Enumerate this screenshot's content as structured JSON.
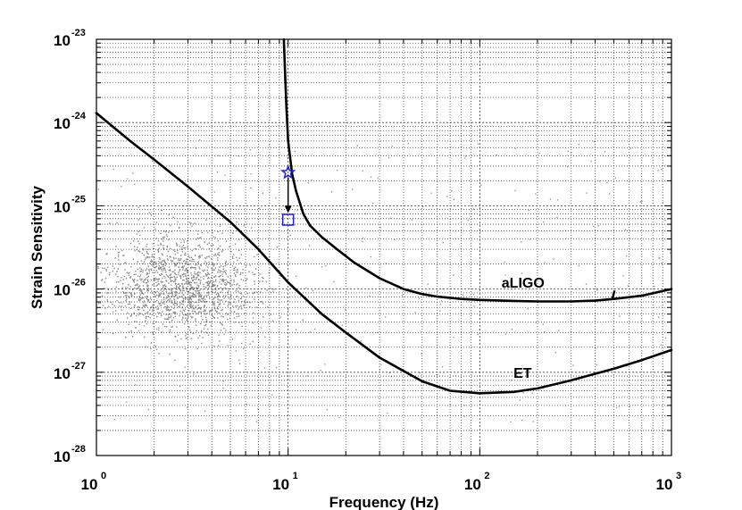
{
  "chart_data": {
    "type": "line",
    "title": "",
    "xlabel": "Frequency (Hz)",
    "ylabel": "Strain Sensitivity",
    "xscale": "log",
    "yscale": "log",
    "xlim": [
      1,
      1000
    ],
    "ylim": [
      1e-28,
      1e-23
    ],
    "grid": true,
    "x_ticks": [
      {
        "base": "10",
        "exp": "0"
      },
      {
        "base": "10",
        "exp": "1"
      },
      {
        "base": "10",
        "exp": "2"
      },
      {
        "base": "10",
        "exp": "3"
      }
    ],
    "y_ticks": [
      {
        "base": "10",
        "exp": "-23"
      },
      {
        "base": "10",
        "exp": "-24"
      },
      {
        "base": "10",
        "exp": "-25"
      },
      {
        "base": "10",
        "exp": "-26"
      },
      {
        "base": "10",
        "exp": "-27"
      },
      {
        "base": "10",
        "exp": "-28"
      }
    ],
    "series": [
      {
        "name": "aLIGO",
        "color": "#000000",
        "x": [
          9.5,
          9.6,
          9.8,
          10.0,
          10.5,
          11,
          12,
          13,
          15,
          18,
          22,
          30,
          40,
          50,
          60,
          80,
          100,
          150,
          200,
          300,
          400,
          500,
          700,
          1000
        ],
        "y": [
          1e-23,
          5e-24,
          1.5e-24,
          6e-25,
          2.4e-25,
          1.5e-25,
          8e-26,
          5.8e-26,
          4.2e-26,
          3e-26,
          2.1e-26,
          1.35e-26,
          1e-26,
          8.7e-27,
          8.1e-27,
          7.6e-27,
          7.4e-27,
          7.2e-27,
          7.1e-27,
          7.1e-27,
          7.25e-27,
          7.6e-27,
          8.3e-27,
          1e-26
        ]
      },
      {
        "name": "ET",
        "color": "#000000",
        "x": [
          1,
          1.5,
          2,
          3,
          5,
          7,
          10,
          15,
          20,
          30,
          50,
          70,
          100,
          150,
          200,
          300,
          500,
          700,
          1000
        ],
        "y": [
          1.3e-24,
          6e-25,
          3.6e-25,
          1.7e-25,
          6.4e-26,
          3e-26,
          1.2e-26,
          5e-27,
          3e-27,
          1.5e-27,
          7.8e-28,
          6e-28,
          5.6e-28,
          5.8e-28,
          6.4e-28,
          8e-28,
          1.1e-27,
          1.4e-27,
          1.85e-27
        ]
      }
    ],
    "annotations": [
      {
        "text": "aLIGO",
        "x": 130,
        "y": 1.04e-26
      },
      {
        "text": "ET",
        "x": 150,
        "y": 8.6e-28
      }
    ],
    "markers": [
      {
        "shape": "star",
        "color": "#1f1fd6",
        "x": 10,
        "y": 2.5e-25
      },
      {
        "shape": "square",
        "color": "#1f1fd6",
        "x": 10,
        "y": 6.8e-26
      },
      {
        "shape": "arrow",
        "color": "#000000",
        "from": [
          10,
          2.2e-25
        ],
        "to": [
          10,
          8.2e-26
        ]
      }
    ],
    "scatter_cloud": {
      "color": "#888888"
    }
  }
}
